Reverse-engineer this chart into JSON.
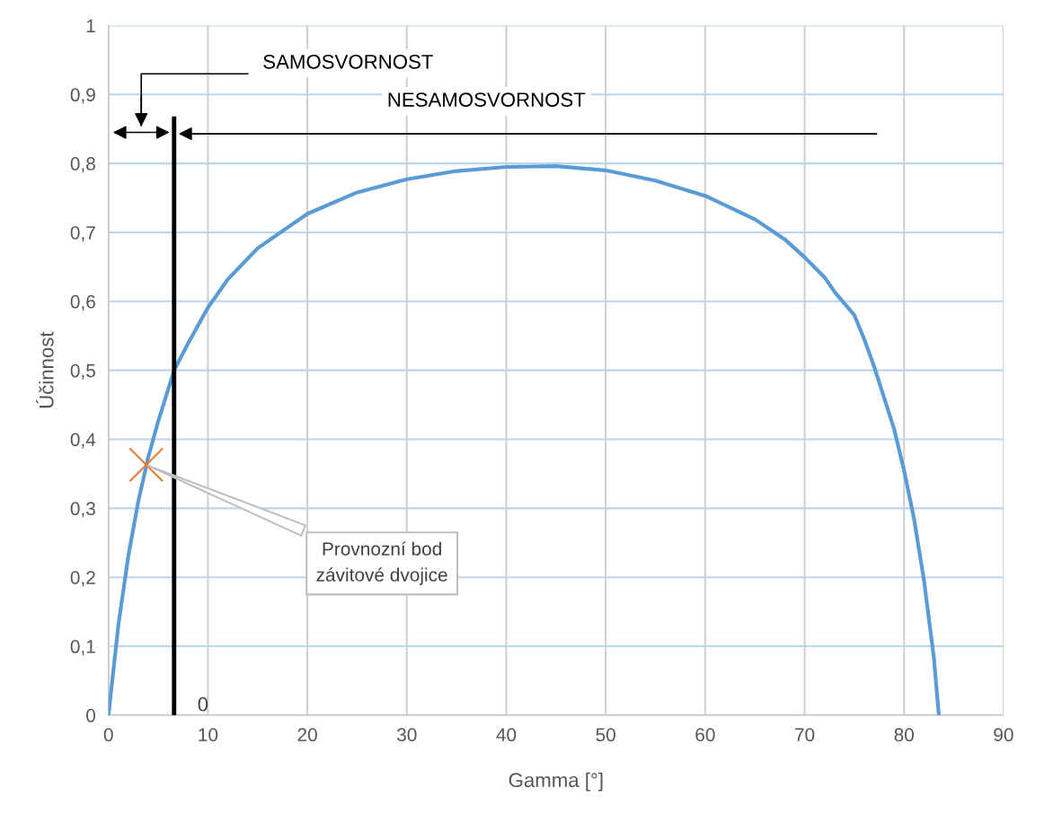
{
  "chart_data": {
    "type": "line",
    "xlabel": "Gamma [°]",
    "ylabel": "Účinnost",
    "series": [
      {
        "color": "#5b9bd5",
        "x": [
          0,
          1,
          2,
          3,
          4,
          5,
          6.6,
          8,
          10,
          12,
          15,
          20,
          25,
          30,
          35,
          40,
          45,
          50,
          55,
          60,
          65,
          68,
          70,
          72,
          73,
          75,
          76,
          77,
          78,
          79,
          80,
          81,
          82,
          83,
          83.5
        ],
        "values": [
          0,
          0.131,
          0.231,
          0.31,
          0.374,
          0.426,
          0.5,
          0.539,
          0.591,
          0.632,
          0.677,
          0.727,
          0.758,
          0.777,
          0.789,
          0.795,
          0.796,
          0.79,
          0.775,
          0.753,
          0.719,
          0.69,
          0.664,
          0.635,
          0.614,
          0.58,
          0.545,
          0.505,
          0.46,
          0.415,
          0.355,
          0.285,
          0.196,
          0.083,
          0
        ]
      },
      {
        "type": "scatter",
        "color": "#ed7d31",
        "marker": "cross",
        "x": [
          3.8
        ],
        "values": [
          0.363
        ]
      }
    ],
    "xlim": [
      0,
      90
    ],
    "xticks": [
      0,
      10,
      20,
      30,
      40,
      50,
      60,
      70,
      80,
      90
    ],
    "ylim": [
      0,
      1
    ],
    "yticks": [
      0,
      {
        "value": 0.1,
        "label": "0,1"
      },
      {
        "value": 0.2,
        "label": "0,2"
      },
      {
        "value": 0.3,
        "label": "0,3"
      },
      {
        "value": 0.4,
        "label": "0,4"
      },
      {
        "value": 0.5,
        "label": "0,5"
      },
      {
        "value": 0.6,
        "label": "0,6"
      },
      {
        "value": 0.7,
        "label": "0,7"
      },
      {
        "value": 0.8,
        "label": "0,8"
      },
      {
        "value": 0.9,
        "label": "0,9"
      },
      1
    ],
    "grid": true,
    "legend": false,
    "ref_lines": [
      {
        "axis": "x",
        "value": 6.6,
        "color": "#000000"
      }
    ],
    "annotations": [
      "SAMOSVORNOST",
      "NESAMOSVORNOST",
      {
        "text": "Provnozní bod\nzávitové dvojice",
        "x": 3.8,
        "y": 0.363
      },
      "0"
    ]
  }
}
